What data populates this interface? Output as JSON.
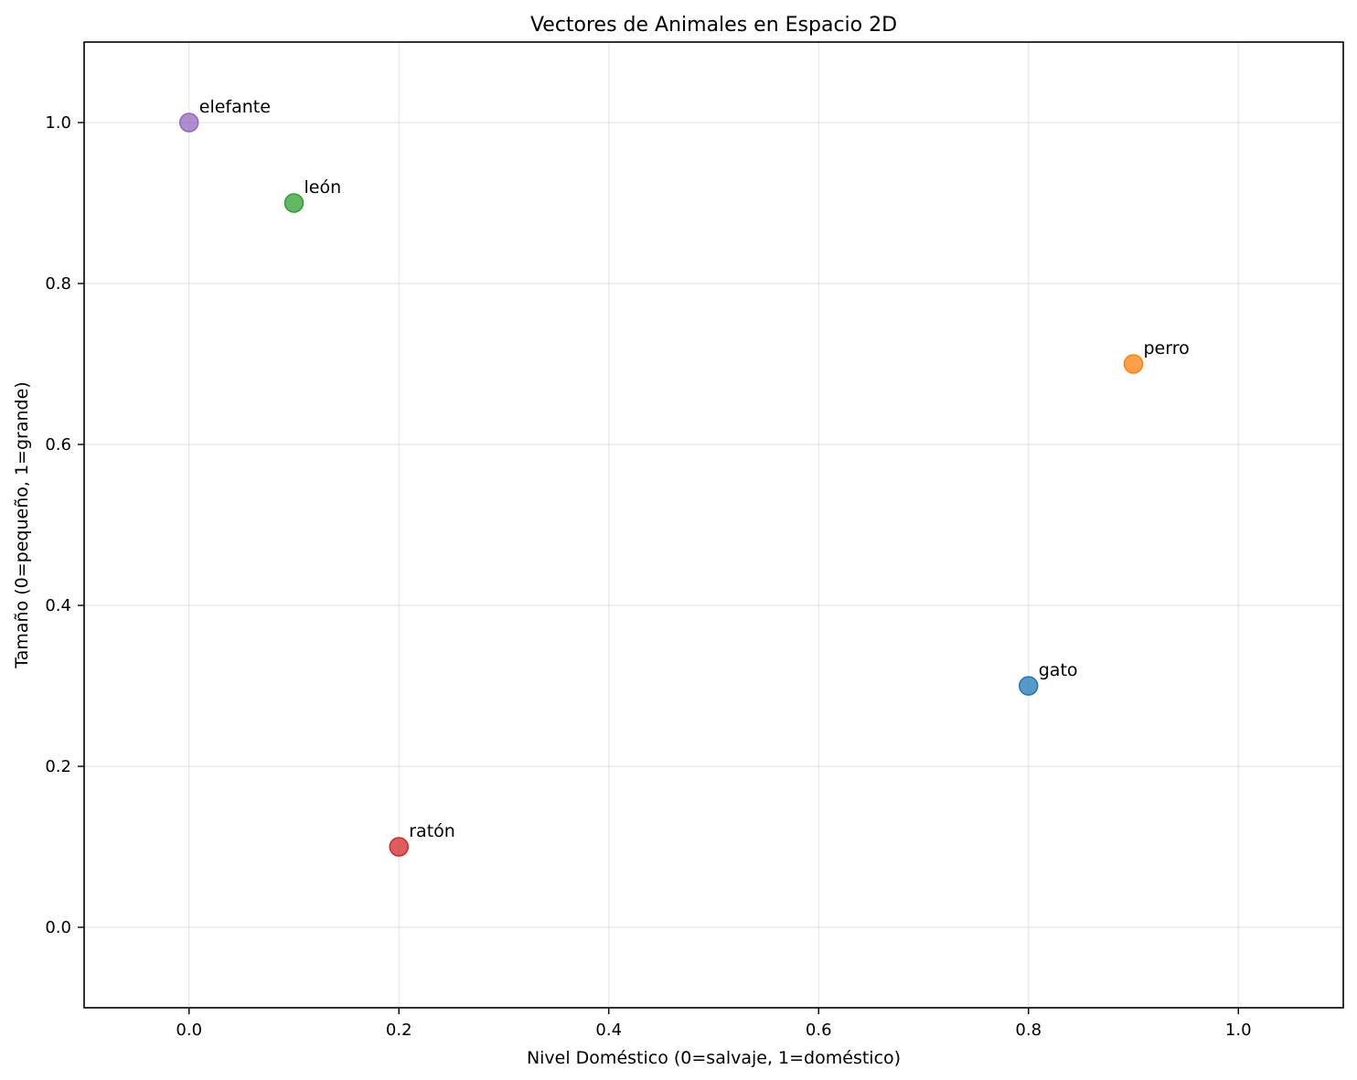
{
  "chart_data": {
    "type": "scatter",
    "title": "Vectores de Animales en Espacio 2D",
    "xlabel": "Nivel Doméstico (0=salvaje, 1=doméstico)",
    "ylabel": "Tamaño (0=pequeño, 1=grande)",
    "xlim": [
      -0.1,
      1.1
    ],
    "ylim": [
      -0.1,
      1.1
    ],
    "xticks": [
      "0.0",
      "0.2",
      "0.4",
      "0.6",
      "0.8",
      "1.0"
    ],
    "yticks": [
      "0.0",
      "0.2",
      "0.4",
      "0.6",
      "0.8",
      "1.0"
    ],
    "grid": true,
    "points": [
      {
        "label": "gato",
        "x": 0.8,
        "y": 0.3,
        "color": "#1f77b4"
      },
      {
        "label": "perro",
        "x": 0.9,
        "y": 0.7,
        "color": "#ff7f0e"
      },
      {
        "label": "león",
        "x": 0.1,
        "y": 0.9,
        "color": "#2ca02c"
      },
      {
        "label": "ratón",
        "x": 0.2,
        "y": 0.1,
        "color": "#d62728"
      },
      {
        "label": "elefante",
        "x": 0.0,
        "y": 1.0,
        "color": "#9467bd"
      }
    ]
  }
}
